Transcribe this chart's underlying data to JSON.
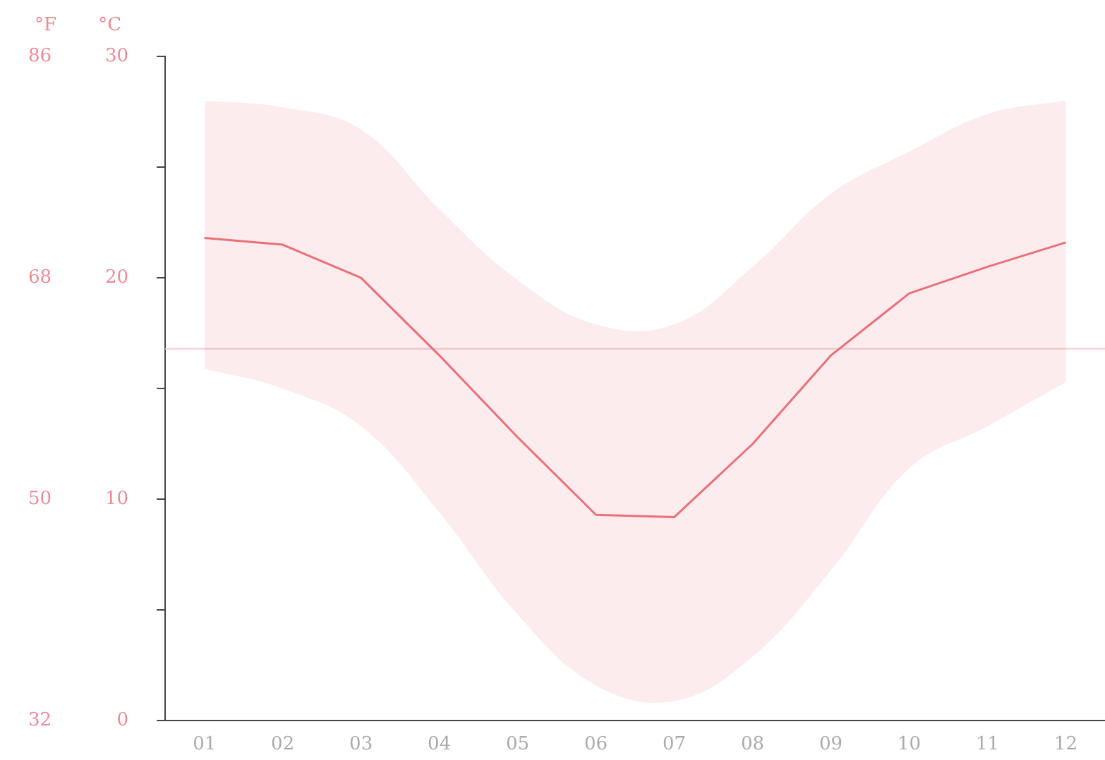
{
  "chart_data": {
    "type": "line",
    "ylabel": "°C",
    "y2label": "°F",
    "categories": [
      "01",
      "02",
      "03",
      "04",
      "05",
      "06",
      "07",
      "08",
      "09",
      "10",
      "11",
      "12"
    ],
    "series": [
      {
        "color": "#ec6f7a",
        "values": [
          21.8,
          21.5,
          20.0,
          16.5,
          12.8,
          9.3,
          9.2,
          12.5,
          16.5,
          19.3,
          20.5,
          21.6
        ],
        "lower": [
          15.9,
          15.0,
          13.3,
          9.4,
          4.8,
          1.6,
          0.9,
          2.9,
          6.8,
          11.4,
          13.3,
          15.3
        ],
        "upper": [
          28.0,
          27.7,
          26.7,
          23.1,
          19.9,
          17.9,
          17.9,
          20.5,
          23.8,
          25.7,
          27.4,
          28.0
        ]
      }
    ],
    "ylim": [
      0,
      30
    ],
    "yticks": [
      0,
      {
        "value": 5,
        "label": null
      },
      10,
      {
        "value": 15,
        "label": null
      },
      20,
      {
        "value": 25,
        "label": null
      },
      30
    ],
    "y2lim": [
      32,
      86
    ],
    "y2ticks": [
      32,
      50,
      68,
      86
    ],
    "ref_lines": [
      {
        "axis": "y",
        "value": 16.8,
        "color": "#f6ccd2"
      }
    ],
    "grid": false,
    "legend": false,
    "marker": "none"
  }
}
